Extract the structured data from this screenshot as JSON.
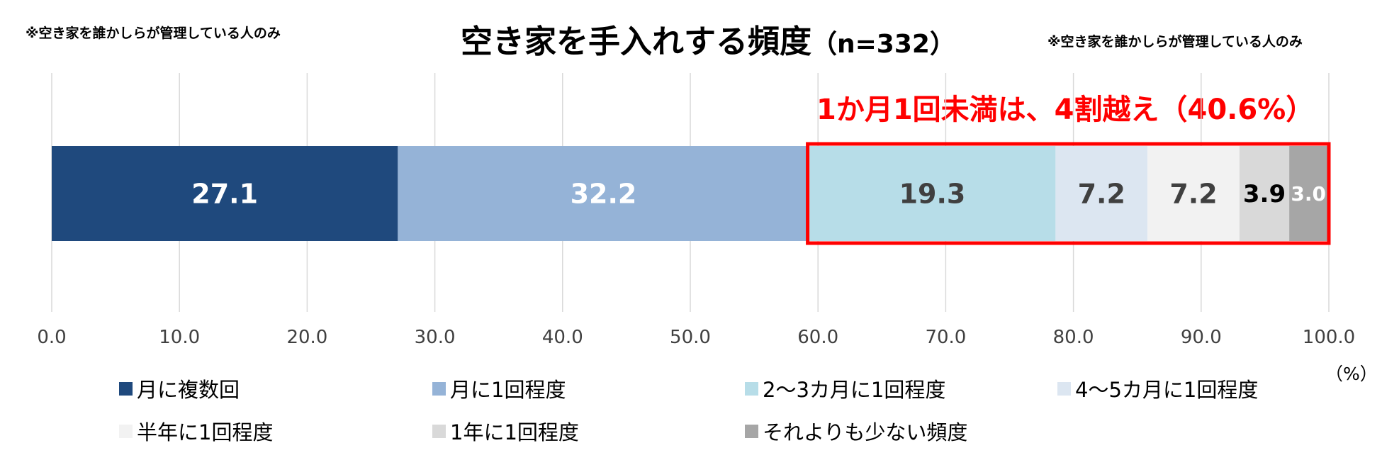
{
  "notes": {
    "left": "※空き家を誰かしらが管理している人のみ",
    "right": "※空き家を誰かしらが管理している人のみ"
  },
  "title": {
    "main": "空き家を手入れする頻度",
    "n": "（n=332）"
  },
  "callout": "1か月1回未満は、4割越え（40.6%）",
  "axis_unit": "（%）",
  "chart_data": {
    "type": "bar",
    "orientation": "horizontal",
    "stacked": true,
    "xlim": [
      0,
      100
    ],
    "xticks": [
      "0.0",
      "10.0",
      "20.0",
      "30.0",
      "40.0",
      "50.0",
      "60.0",
      "70.0",
      "80.0",
      "90.0",
      "100.0"
    ],
    "grid": true,
    "legend_position": "bottom",
    "series": [
      {
        "name": "月に複数回",
        "value": 27.1,
        "label": "27.1",
        "color": "#1f497d",
        "label_color": "#ffffff"
      },
      {
        "name": "月に1回程度",
        "value": 32.2,
        "label": "32.2",
        "color": "#95b3d7",
        "label_color": "#ffffff"
      },
      {
        "name": "2～3カ月に1回程度",
        "value": 19.3,
        "label": "19.3",
        "color": "#b7dde8",
        "label_color": "#404040"
      },
      {
        "name": "4～5カ月に1回程度",
        "value": 7.2,
        "label": "7.2",
        "color": "#dce6f1",
        "label_color": "#404040"
      },
      {
        "name": "半年に1回程度",
        "value": 7.2,
        "label": "7.2",
        "color": "#f2f2f2",
        "label_color": "#404040"
      },
      {
        "name": "1年に1回程度",
        "value": 3.9,
        "label": "3.9",
        "color": "#d9d9d9",
        "label_color": "#000000"
      },
      {
        "name": "それよりも少ない頻度",
        "value": 3.0,
        "label": "3.0",
        "color": "#a6a6a6",
        "label_color": "#ffffff"
      }
    ],
    "highlight": {
      "from": 59.3,
      "to": 100,
      "color": "#ff0000"
    }
  }
}
